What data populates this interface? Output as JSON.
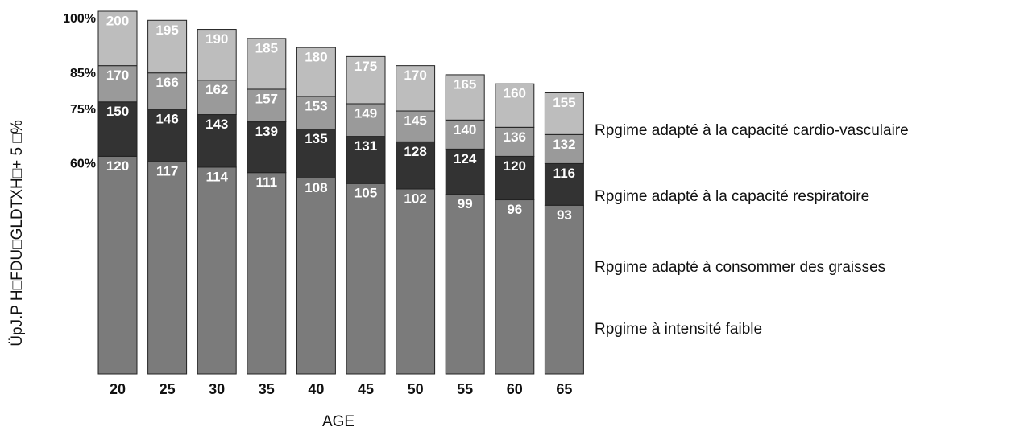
{
  "chart_data": {
    "type": "bar",
    "x_label": "AGE",
    "y_label": "ÜpJ.P H□FDU□GLDTXH□+ 5 □%",
    "zone_labels": [
      "60%",
      "75%",
      "85%",
      "100%"
    ],
    "categories": [
      "20",
      "25",
      "30",
      "35",
      "40",
      "45",
      "50",
      "55",
      "60",
      "65"
    ],
    "ylim": [
      0,
      200
    ],
    "series": [
      {
        "name": "Rpgime à intensité faible",
        "color": "#7b7b7b",
        "values": [
          120,
          117,
          114,
          111,
          108,
          105,
          102,
          99,
          96,
          93
        ]
      },
      {
        "name": "Rpgime adapté à consommer des graisses",
        "color": "#333333",
        "values": [
          150,
          146,
          143,
          139,
          135,
          131,
          128,
          124,
          120,
          116
        ]
      },
      {
        "name": "Rpgime adapté à la capacité respiratoire",
        "color": "#9a9a9a",
        "values": [
          170,
          166,
          162,
          157,
          153,
          149,
          145,
          140,
          136,
          132
        ]
      },
      {
        "name": "Rpgime adapté à la capacité cardio-vasculaire",
        "color": "#bdbdbd",
        "values": [
          200,
          195,
          190,
          185,
          180,
          175,
          170,
          165,
          160,
          155
        ]
      }
    ]
  }
}
